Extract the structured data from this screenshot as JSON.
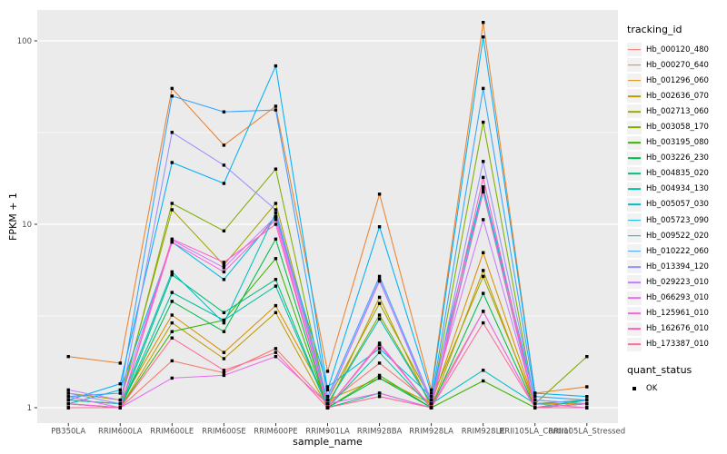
{
  "figure": {
    "xlabel": "sample_name",
    "ylabel": "FPKM + 1",
    "legend_title": "tracking_id",
    "legend2_title": "quant_status",
    "legend2_items": [
      {
        "label": "OK",
        "marker": "black-square"
      }
    ],
    "panel": {
      "bg": "#EBEBEB",
      "grid_major": "#FFFFFF",
      "grid_minor": "#FFFFFF",
      "axis_text_color": "#4D4D4D",
      "axis_tick_color": "#333333"
    }
  },
  "chart_data": {
    "type": "line",
    "title": "",
    "xlabel": "sample_name",
    "ylabel": "FPKM + 1",
    "y_scale": "log10",
    "ylim": [
      0.9,
      140
    ],
    "yticks": [
      1,
      10,
      100
    ],
    "ytick_labels": [
      "1",
      "10",
      "100"
    ],
    "y_minor_gridlines": [
      3.162,
      31.62
    ],
    "grid": "on",
    "legend_position": "right",
    "marker": {
      "shape": "square",
      "color": "#000000",
      "size": 3.4
    },
    "x_categories": [
      "PB350LA",
      "RRIM600LA",
      "RRIM600LE",
      "RRIM600SE",
      "RRIM600PE",
      "RRIM901LA",
      "RRIM928BA",
      "RRIM928LA",
      "RRIM928LE",
      "RRII105LA_Control",
      "RRII105LA_Stressed"
    ],
    "values_note": "FPKM+1, estimated from pixel positions on log scale",
    "series": [
      {
        "name": "Hb_000120_480",
        "color": "#F8766D",
        "values": [
          1.05,
          1.0,
          1.8,
          1.55,
          2.1,
          1.05,
          1.75,
          1.05,
          3.35,
          1.0,
          1.0
        ]
      },
      {
        "name": "Hb_000270_640",
        "color": "#EA8331",
        "values": [
          1.9,
          1.75,
          55,
          27,
          44,
          1.58,
          14.6,
          1.25,
          126,
          1.2,
          1.3
        ]
      },
      {
        "name": "Hb_001296_060",
        "color": "#D89000",
        "values": [
          1.1,
          1.05,
          3.2,
          2.0,
          3.6,
          1.1,
          1.45,
          1.05,
          7.0,
          1.05,
          1.05
        ]
      },
      {
        "name": "Hb_002636_070",
        "color": "#C09B00",
        "values": [
          1.05,
          1.0,
          2.9,
          1.85,
          3.3,
          1.0,
          4.0,
          1.0,
          5.6,
          1.0,
          1.0
        ]
      },
      {
        "name": "Hb_002713_060",
        "color": "#A3A500",
        "values": [
          1.2,
          1.1,
          12.0,
          6.0,
          13.0,
          1.1,
          3.7,
          1.1,
          5.2,
          1.05,
          1.1
        ]
      },
      {
        "name": "Hb_003058_170",
        "color": "#7CAE00",
        "values": [
          1.1,
          1.05,
          13.0,
          9.2,
          20.0,
          1.05,
          3.2,
          1.05,
          36,
          1.05,
          1.9
        ]
      },
      {
        "name": "Hb_003195_080",
        "color": "#39B600",
        "values": [
          1.0,
          1.0,
          2.6,
          3.0,
          6.5,
          1.0,
          1.5,
          1.0,
          1.4,
          1.0,
          1.1
        ]
      },
      {
        "name": "Hb_003226_230",
        "color": "#00BB4E",
        "values": [
          1.0,
          1.0,
          3.8,
          2.6,
          8.3,
          1.0,
          1.45,
          1.0,
          4.2,
          1.0,
          1.05
        ]
      },
      {
        "name": "Hb_004835_020",
        "color": "#00BF7D",
        "values": [
          1.05,
          1.0,
          5.3,
          3.3,
          5.0,
          1.0,
          1.2,
          1.0,
          15.0,
          1.0,
          1.05
        ]
      },
      {
        "name": "Hb_004934_130",
        "color": "#00C1A3",
        "values": [
          1.0,
          1.0,
          4.25,
          3.0,
          4.6,
          1.0,
          2.0,
          1.0,
          15.5,
          1.0,
          1.1
        ]
      },
      {
        "name": "Hb_005057_030",
        "color": "#00BFC4",
        "values": [
          1.1,
          1.05,
          5.5,
          2.9,
          11.5,
          1.05,
          3.05,
          1.05,
          1.6,
          1.05,
          1.1
        ]
      },
      {
        "name": "Hb_005723_090",
        "color": "#00BAE0",
        "values": [
          1.05,
          1.25,
          8.0,
          5.0,
          11.0,
          1.3,
          2.1,
          1.15,
          16.0,
          1.1,
          1.05
        ]
      },
      {
        "name": "Hb_009522_020",
        "color": "#00B0F6",
        "values": [
          1.1,
          1.35,
          21.7,
          16.7,
          73,
          1.25,
          9.7,
          1.2,
          105,
          1.2,
          1.15
        ]
      },
      {
        "name": "Hb_010222_060",
        "color": "#35A2FF",
        "values": [
          1.15,
          1.2,
          50,
          41,
          42,
          1.15,
          5.2,
          1.1,
          55,
          1.15,
          1.1
        ]
      },
      {
        "name": "Hb_013394_120",
        "color": "#9590FF",
        "values": [
          1.2,
          1.05,
          31.7,
          21,
          12.0,
          1.1,
          5.0,
          1.05,
          22,
          1.1,
          1.05
        ]
      },
      {
        "name": "Hb_029223_010",
        "color": "#C77CFF",
        "values": [
          1.25,
          1.1,
          8.2,
          5.8,
          11.0,
          1.1,
          4.9,
          1.1,
          10.6,
          1.05,
          1.0
        ]
      },
      {
        "name": "Hb_066293_010",
        "color": "#E76BF3",
        "values": [
          1.15,
          1.0,
          1.45,
          1.5,
          1.9,
          1.05,
          1.2,
          1.0,
          3.35,
          1.0,
          1.0
        ]
      },
      {
        "name": "Hb_125961_010",
        "color": "#FA62DB",
        "values": [
          1.05,
          1.0,
          8.0,
          5.5,
          10.6,
          1.0,
          2.2,
          1.0,
          15.2,
          1.0,
          1.0
        ]
      },
      {
        "name": "Hb_162676_010",
        "color": "#FF62BC",
        "values": [
          1.0,
          1.0,
          8.3,
          6.2,
          10.0,
          1.0,
          2.25,
          1.0,
          18.0,
          1.0,
          1.05
        ]
      },
      {
        "name": "Hb_173387_010",
        "color": "#FF6A98",
        "values": [
          1.0,
          1.0,
          2.4,
          1.6,
          2.0,
          1.0,
          1.15,
          1.0,
          2.9,
          1.0,
          1.0
        ]
      }
    ]
  }
}
